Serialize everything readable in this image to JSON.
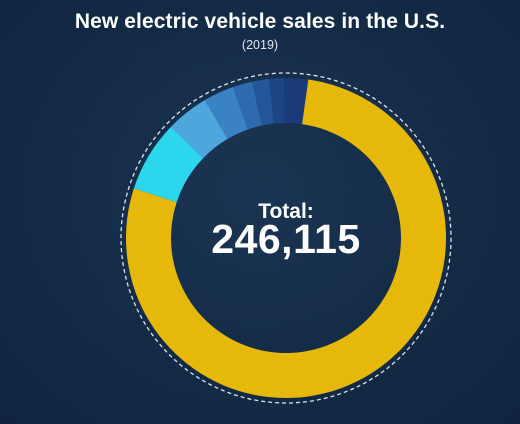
{
  "title": "New electric vehicle sales in the U.S.",
  "subtitle": "(2019)",
  "total_label": "Total:",
  "total_value": "246,115",
  "chart_data": {
    "type": "pie",
    "title": "New electric vehicle sales in the U.S.",
    "subtitle": "(2019)",
    "total": 246115,
    "donut": true,
    "slices": [
      {
        "value": 77.8,
        "color": "#e6b80a"
      },
      {
        "value": 7.2,
        "color": "#2cd6ec"
      },
      {
        "value": 4.3,
        "color": "#4da7dc"
      },
      {
        "value": 3.1,
        "color": "#3a82c4"
      },
      {
        "value": 2.0,
        "color": "#2e6aae"
      },
      {
        "value": 1.7,
        "color": "#24569a"
      },
      {
        "value": 1.5,
        "color": "#1d4486"
      },
      {
        "value": 2.4,
        "color": "#1a3a78"
      }
    ]
  }
}
